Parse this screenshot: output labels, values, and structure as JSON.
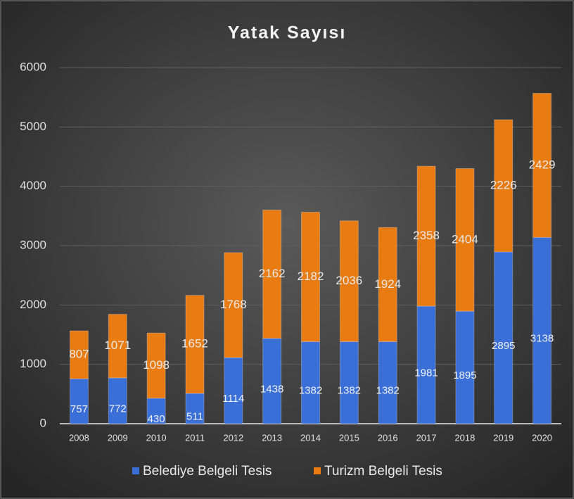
{
  "chart_data": {
    "type": "bar",
    "stacked": true,
    "title": "Yatak Sayısı",
    "categories": [
      "2008",
      "2009",
      "2010",
      "2011",
      "2012",
      "2013",
      "2014",
      "2015",
      "2016",
      "2017",
      "2018",
      "2019",
      "2020"
    ],
    "series": [
      {
        "name": "Belediye Belgeli Tesis",
        "color": "#3a6fd8",
        "values": [
          757,
          772,
          430,
          511,
          1114,
          1438,
          1382,
          1382,
          1382,
          1981,
          1895,
          2895,
          3138
        ]
      },
      {
        "name": "Turizm Belgeli Tesis",
        "color": "#e87b12",
        "values": [
          807,
          1071,
          1098,
          1652,
          1768,
          2162,
          2182,
          2036,
          1924,
          2358,
          2404,
          2226,
          2429
        ]
      }
    ],
    "ylim": [
      0,
      6000
    ],
    "yticks": [
      0,
      1000,
      2000,
      3000,
      4000,
      5000,
      6000
    ],
    "grid": true,
    "legend": "bottom"
  }
}
